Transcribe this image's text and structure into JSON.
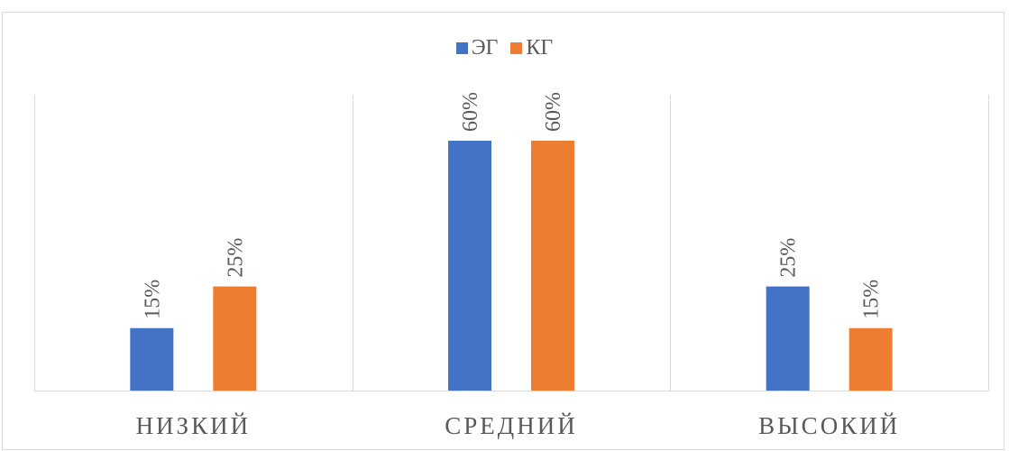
{
  "chart_data": {
    "type": "bar",
    "categories": [
      "НИЗКИЙ",
      "СРЕДНИЙ",
      "ВЫСОКИЙ"
    ],
    "series": [
      {
        "name": "ЭГ",
        "values": [
          15,
          60,
          25
        ],
        "labels": [
          "15%",
          "60%",
          "25%"
        ],
        "color": "#4472c4"
      },
      {
        "name": "КГ",
        "values": [
          25,
          60,
          15
        ],
        "labels": [
          "25%",
          "60%",
          "15%"
        ],
        "color": "#ed7d31"
      }
    ],
    "ylim": [
      0,
      60
    ],
    "legend_position": "top",
    "grid": "vertical category separators",
    "title": "",
    "xlabel": "",
    "ylabel": ""
  }
}
